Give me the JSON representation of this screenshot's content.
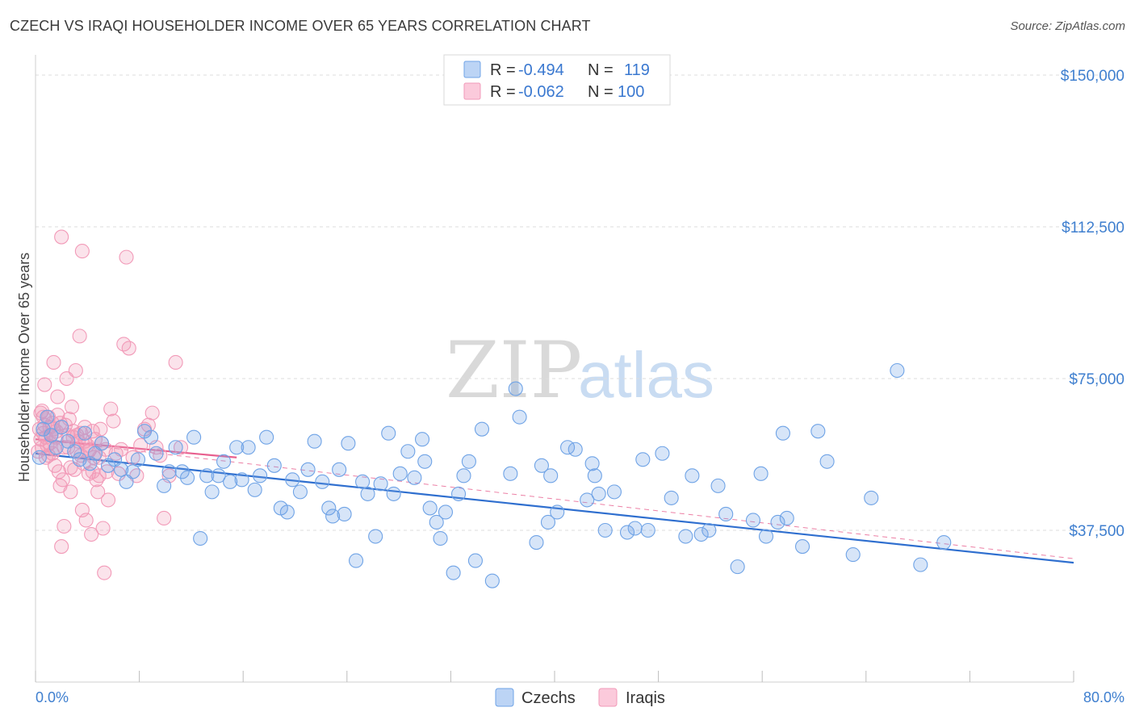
{
  "header": {
    "title": "CZECH VS IRAQI HOUSEHOLDER INCOME OVER 65 YEARS CORRELATION CHART",
    "source": "Source: ZipAtlas.com"
  },
  "watermark": {
    "zip": "ZIP",
    "atlas": "atlas"
  },
  "legend_top": {
    "rows": [
      {
        "r_label": "R =",
        "r_value": "-0.494",
        "n_label": "N =",
        "n_value": "119",
        "color": "#6fa3e6"
      },
      {
        "r_label": "R =",
        "r_value": "-0.062",
        "n_label": "N =",
        "n_value": "100",
        "color": "#f29ab8"
      }
    ]
  },
  "legend_bottom": {
    "items": [
      "Czechs",
      "Iraqis"
    ]
  },
  "colors": {
    "blue": "#6fa3e6",
    "blue_line": "#2f6fcf",
    "pink": "#f29ab8",
    "pink_line": "#e8608f",
    "tick_text": "#3f7fcf"
  },
  "chart_data": {
    "type": "scatter",
    "ylabel": "Householder Income Over 65 years",
    "xlim": [
      0,
      80
    ],
    "ylim": [
      0,
      153000
    ],
    "x_tick_labels": [
      "0.0%",
      "80.0%"
    ],
    "y_ticks": [
      {
        "value": 37500,
        "label": "$37,500"
      },
      {
        "value": 75000,
        "label": "$75,000"
      },
      {
        "value": 112500,
        "label": "$112,500"
      },
      {
        "value": 150000,
        "label": "$150,000"
      }
    ],
    "grid": "horizontal dashed",
    "series": [
      {
        "name": "Czechs",
        "color": "#6fa3e6",
        "trend": {
          "x": [
            0,
            80
          ],
          "y": [
            56500,
            29500
          ]
        },
        "points": [
          [
            0.3,
            55500
          ],
          [
            0.6,
            62500
          ],
          [
            0.9,
            65500
          ],
          [
            1.2,
            61000
          ],
          [
            1.6,
            58000
          ],
          [
            2.0,
            63000
          ],
          [
            2.5,
            59500
          ],
          [
            3.0,
            57000
          ],
          [
            3.4,
            55000
          ],
          [
            3.8,
            61500
          ],
          [
            4.2,
            54000
          ],
          [
            4.6,
            56500
          ],
          [
            5.1,
            59000
          ],
          [
            5.6,
            53500
          ],
          [
            6.1,
            55000
          ],
          [
            6.6,
            52500
          ],
          [
            7.0,
            49500
          ],
          [
            7.5,
            52000
          ],
          [
            7.9,
            55000
          ],
          [
            8.4,
            62000
          ],
          [
            8.9,
            60500
          ],
          [
            9.3,
            56500
          ],
          [
            9.9,
            48500
          ],
          [
            10.3,
            52000
          ],
          [
            10.8,
            58000
          ],
          [
            11.3,
            52000
          ],
          [
            11.7,
            50500
          ],
          [
            12.2,
            60500
          ],
          [
            12.7,
            35500
          ],
          [
            13.2,
            51000
          ],
          [
            13.6,
            47000
          ],
          [
            14.1,
            51000
          ],
          [
            14.5,
            54500
          ],
          [
            15.0,
            49500
          ],
          [
            15.5,
            58000
          ],
          [
            15.9,
            50000
          ],
          [
            16.4,
            58000
          ],
          [
            16.9,
            47500
          ],
          [
            17.3,
            51000
          ],
          [
            17.8,
            60500
          ],
          [
            18.4,
            53500
          ],
          [
            18.9,
            43000
          ],
          [
            19.4,
            42000
          ],
          [
            19.8,
            50000
          ],
          [
            20.4,
            47000
          ],
          [
            21.0,
            52500
          ],
          [
            21.5,
            59500
          ],
          [
            22.1,
            49500
          ],
          [
            22.6,
            43000
          ],
          [
            22.9,
            41000
          ],
          [
            23.4,
            52500
          ],
          [
            23.8,
            41500
          ],
          [
            24.1,
            59000
          ],
          [
            24.7,
            30000
          ],
          [
            25.2,
            49500
          ],
          [
            25.6,
            46500
          ],
          [
            26.2,
            36000
          ],
          [
            26.6,
            49000
          ],
          [
            27.2,
            61500
          ],
          [
            27.6,
            46500
          ],
          [
            28.1,
            51500
          ],
          [
            28.7,
            57000
          ],
          [
            29.2,
            50500
          ],
          [
            29.8,
            60000
          ],
          [
            30.0,
            54500
          ],
          [
            30.4,
            43000
          ],
          [
            30.9,
            39500
          ],
          [
            31.2,
            35500
          ],
          [
            31.6,
            42000
          ],
          [
            32.2,
            27000
          ],
          [
            32.6,
            46500
          ],
          [
            33.0,
            51000
          ],
          [
            33.4,
            54500
          ],
          [
            33.9,
            30000
          ],
          [
            34.4,
            62500
          ],
          [
            35.2,
            25000
          ],
          [
            36.6,
            51500
          ],
          [
            37.0,
            72500
          ],
          [
            37.3,
            65500
          ],
          [
            38.6,
            34500
          ],
          [
            39.0,
            53500
          ],
          [
            39.5,
            39500
          ],
          [
            39.7,
            51000
          ],
          [
            40.2,
            42000
          ],
          [
            41.0,
            58000
          ],
          [
            41.6,
            57500
          ],
          [
            42.5,
            45000
          ],
          [
            42.9,
            54000
          ],
          [
            43.1,
            51000
          ],
          [
            43.4,
            46500
          ],
          [
            43.9,
            37500
          ],
          [
            44.6,
            47000
          ],
          [
            45.6,
            37000
          ],
          [
            46.2,
            38000
          ],
          [
            47.2,
            37500
          ],
          [
            48.3,
            56500
          ],
          [
            49.0,
            45500
          ],
          [
            50.1,
            36000
          ],
          [
            50.6,
            51000
          ],
          [
            51.3,
            36500
          ],
          [
            51.9,
            37500
          ],
          [
            53.2,
            41500
          ],
          [
            54.1,
            28500
          ],
          [
            55.3,
            40000
          ],
          [
            55.9,
            51500
          ],
          [
            56.3,
            36000
          ],
          [
            57.2,
            39500
          ],
          [
            57.6,
            61500
          ],
          [
            57.9,
            40500
          ],
          [
            59.1,
            33500
          ],
          [
            60.3,
            62000
          ],
          [
            61.0,
            54500
          ],
          [
            63.0,
            31500
          ],
          [
            66.4,
            77000
          ],
          [
            68.2,
            29000
          ],
          [
            70.0,
            34500
          ],
          [
            64.4,
            45500
          ],
          [
            52.6,
            48500
          ],
          [
            46.8,
            55000
          ]
        ]
      },
      {
        "name": "Iraqis",
        "color": "#f29ab8",
        "trend": {
          "x": [
            0,
            15.5
          ],
          "y": [
            60000,
            55500
          ]
        },
        "trend_extended": {
          "x": [
            0,
            80
          ],
          "y": [
            60000,
            30500
          ]
        },
        "points": [
          [
            0.2,
            57000
          ],
          [
            0.3,
            62500
          ],
          [
            0.4,
            60000
          ],
          [
            0.5,
            67000
          ],
          [
            0.6,
            65500
          ],
          [
            0.7,
            73500
          ],
          [
            0.8,
            60500
          ],
          [
            0.9,
            58500
          ],
          [
            1.0,
            56000
          ],
          [
            1.1,
            63000
          ],
          [
            1.2,
            61000
          ],
          [
            1.3,
            64000
          ],
          [
            1.4,
            79000
          ],
          [
            1.5,
            57500
          ],
          [
            1.6,
            62000
          ],
          [
            1.7,
            70500
          ],
          [
            1.8,
            52000
          ],
          [
            1.9,
            48500
          ],
          [
            2.0,
            33500
          ],
          [
            2.1,
            50000
          ],
          [
            2.2,
            38500
          ],
          [
            2.3,
            63500
          ],
          [
            2.4,
            75000
          ],
          [
            2.5,
            58000
          ],
          [
            2.6,
            65000
          ],
          [
            2.7,
            47000
          ],
          [
            2.8,
            68000
          ],
          [
            2.9,
            60500
          ],
          [
            3.0,
            52500
          ],
          [
            3.1,
            77000
          ],
          [
            3.2,
            57000
          ],
          [
            3.3,
            59500
          ],
          [
            3.4,
            85500
          ],
          [
            3.5,
            61500
          ],
          [
            3.6,
            42500
          ],
          [
            3.7,
            54000
          ],
          [
            3.8,
            59500
          ],
          [
            3.9,
            40000
          ],
          [
            4.0,
            58500
          ],
          [
            4.1,
            51500
          ],
          [
            4.2,
            57500
          ],
          [
            4.3,
            36500
          ],
          [
            4.4,
            62000
          ],
          [
            4.5,
            55500
          ],
          [
            4.6,
            60000
          ],
          [
            4.7,
            50000
          ],
          [
            4.8,
            47000
          ],
          [
            4.9,
            51000
          ],
          [
            5.0,
            62500
          ],
          [
            5.1,
            59000
          ],
          [
            5.2,
            38000
          ],
          [
            5.3,
            27000
          ],
          [
            5.5,
            52000
          ],
          [
            5.6,
            45000
          ],
          [
            5.8,
            67500
          ],
          [
            6.0,
            64500
          ],
          [
            6.2,
            56500
          ],
          [
            6.4,
            51500
          ],
          [
            6.6,
            57500
          ],
          [
            6.8,
            83500
          ],
          [
            7.0,
            105000
          ],
          [
            7.2,
            82500
          ],
          [
            7.5,
            55500
          ],
          [
            7.8,
            51000
          ],
          [
            8.1,
            58500
          ],
          [
            8.4,
            62500
          ],
          [
            8.7,
            63500
          ],
          [
            9.0,
            66500
          ],
          [
            9.3,
            58000
          ],
          [
            9.6,
            56000
          ],
          [
            9.9,
            40500
          ],
          [
            10.3,
            51000
          ],
          [
            10.8,
            79000
          ],
          [
            11.2,
            58000
          ],
          [
            2.0,
            110000
          ],
          [
            3.6,
            106500
          ],
          [
            0.4,
            66500
          ],
          [
            0.5,
            58000
          ],
          [
            0.6,
            61500
          ],
          [
            0.7,
            63500
          ],
          [
            0.8,
            55500
          ],
          [
            1.0,
            65500
          ],
          [
            1.1,
            59000
          ],
          [
            1.3,
            56500
          ],
          [
            1.4,
            62500
          ],
          [
            1.5,
            53500
          ],
          [
            1.6,
            60500
          ],
          [
            1.7,
            66000
          ],
          [
            1.9,
            64000
          ],
          [
            2.2,
            58000
          ],
          [
            2.5,
            61000
          ],
          [
            2.7,
            53000
          ],
          [
            2.9,
            62000
          ],
          [
            3.2,
            61000
          ],
          [
            3.5,
            56000
          ],
          [
            3.8,
            63000
          ],
          [
            4.1,
            57000
          ],
          [
            4.4,
            52000
          ],
          [
            4.9,
            55500
          ],
          [
            5.4,
            57500
          ]
        ]
      }
    ]
  }
}
